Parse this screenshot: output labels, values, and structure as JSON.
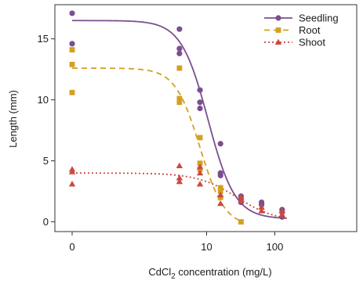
{
  "chart_data": {
    "type": "scatter",
    "x_scale": "log",
    "x_zero_shown": true,
    "xlabel_main": "CdCl",
    "xlabel_sub": "2",
    "xlabel_rest": " concentration (mg/L)",
    "ylabel": "Length (mm)",
    "xlim": [
      0,
      150
    ],
    "ylim": [
      -0.8,
      17.8
    ],
    "x_ticks": [
      {
        "value": 0,
        "label": "0"
      },
      {
        "value": 10,
        "label": "10"
      },
      {
        "value": 100,
        "label": "100"
      }
    ],
    "y_ticks": [
      {
        "value": 0,
        "label": "0"
      },
      {
        "value": 5,
        "label": "5"
      },
      {
        "value": 10,
        "label": "10"
      },
      {
        "value": 15,
        "label": "15"
      }
    ],
    "legend_position": "top-right",
    "series": [
      {
        "name": "Seedling",
        "color": "#7B4F8F",
        "marker": "circle",
        "line_style": "solid",
        "points": [
          [
            0,
            17.1
          ],
          [
            0,
            14.6
          ],
          [
            4,
            15.8
          ],
          [
            4,
            14.2
          ],
          [
            4,
            13.8
          ],
          [
            8,
            10.8
          ],
          [
            8,
            9.8
          ],
          [
            8,
            9.3
          ],
          [
            16,
            6.4
          ],
          [
            16,
            4.0
          ],
          [
            16,
            3.8
          ],
          [
            32,
            2.1
          ],
          [
            32,
            1.9
          ],
          [
            32,
            1.6
          ],
          [
            64,
            1.6
          ],
          [
            64,
            1.4
          ],
          [
            128,
            1.0
          ],
          [
            128,
            0.8
          ],
          [
            128,
            0.4
          ]
        ],
        "fit": {
          "top": 16.5,
          "bottom": 0.25,
          "ec50": 10.5,
          "hill": 2.2
        }
      },
      {
        "name": "Root",
        "color": "#D4A020",
        "marker": "square",
        "line_style": "dashed",
        "points": [
          [
            0,
            14.1
          ],
          [
            0,
            12.9
          ],
          [
            0,
            10.6
          ],
          [
            4,
            12.6
          ],
          [
            4,
            10.1
          ],
          [
            4,
            9.8
          ],
          [
            8,
            6.9
          ],
          [
            8,
            4.8
          ],
          [
            8,
            4.3
          ],
          [
            16,
            2.8
          ],
          [
            16,
            2.5
          ],
          [
            16,
            2.0
          ],
          [
            32,
            0.0
          ]
        ],
        "fit": {
          "top": 12.6,
          "bottom": -0.4,
          "ec50": 8.0,
          "hill": 2.4,
          "x_max": 32
        }
      },
      {
        "name": "Shoot",
        "color": "#CC4A3E",
        "marker": "triangle",
        "line_style": "dotted",
        "points": [
          [
            0,
            4.3
          ],
          [
            0,
            4.1
          ],
          [
            0,
            3.1
          ],
          [
            4,
            4.6
          ],
          [
            4,
            3.6
          ],
          [
            4,
            3.3
          ],
          [
            8,
            4.5
          ],
          [
            8,
            4.0
          ],
          [
            8,
            3.1
          ],
          [
            16,
            2.2
          ],
          [
            16,
            1.5
          ],
          [
            32,
            2.0
          ],
          [
            32,
            1.7
          ],
          [
            64,
            1.2
          ],
          [
            64,
            0.9
          ],
          [
            128,
            0.9
          ],
          [
            128,
            0.6
          ]
        ],
        "fit": {
          "top": 4.0,
          "bottom": 0.0,
          "ec50": 28,
          "hill": 1.5
        }
      }
    ]
  }
}
